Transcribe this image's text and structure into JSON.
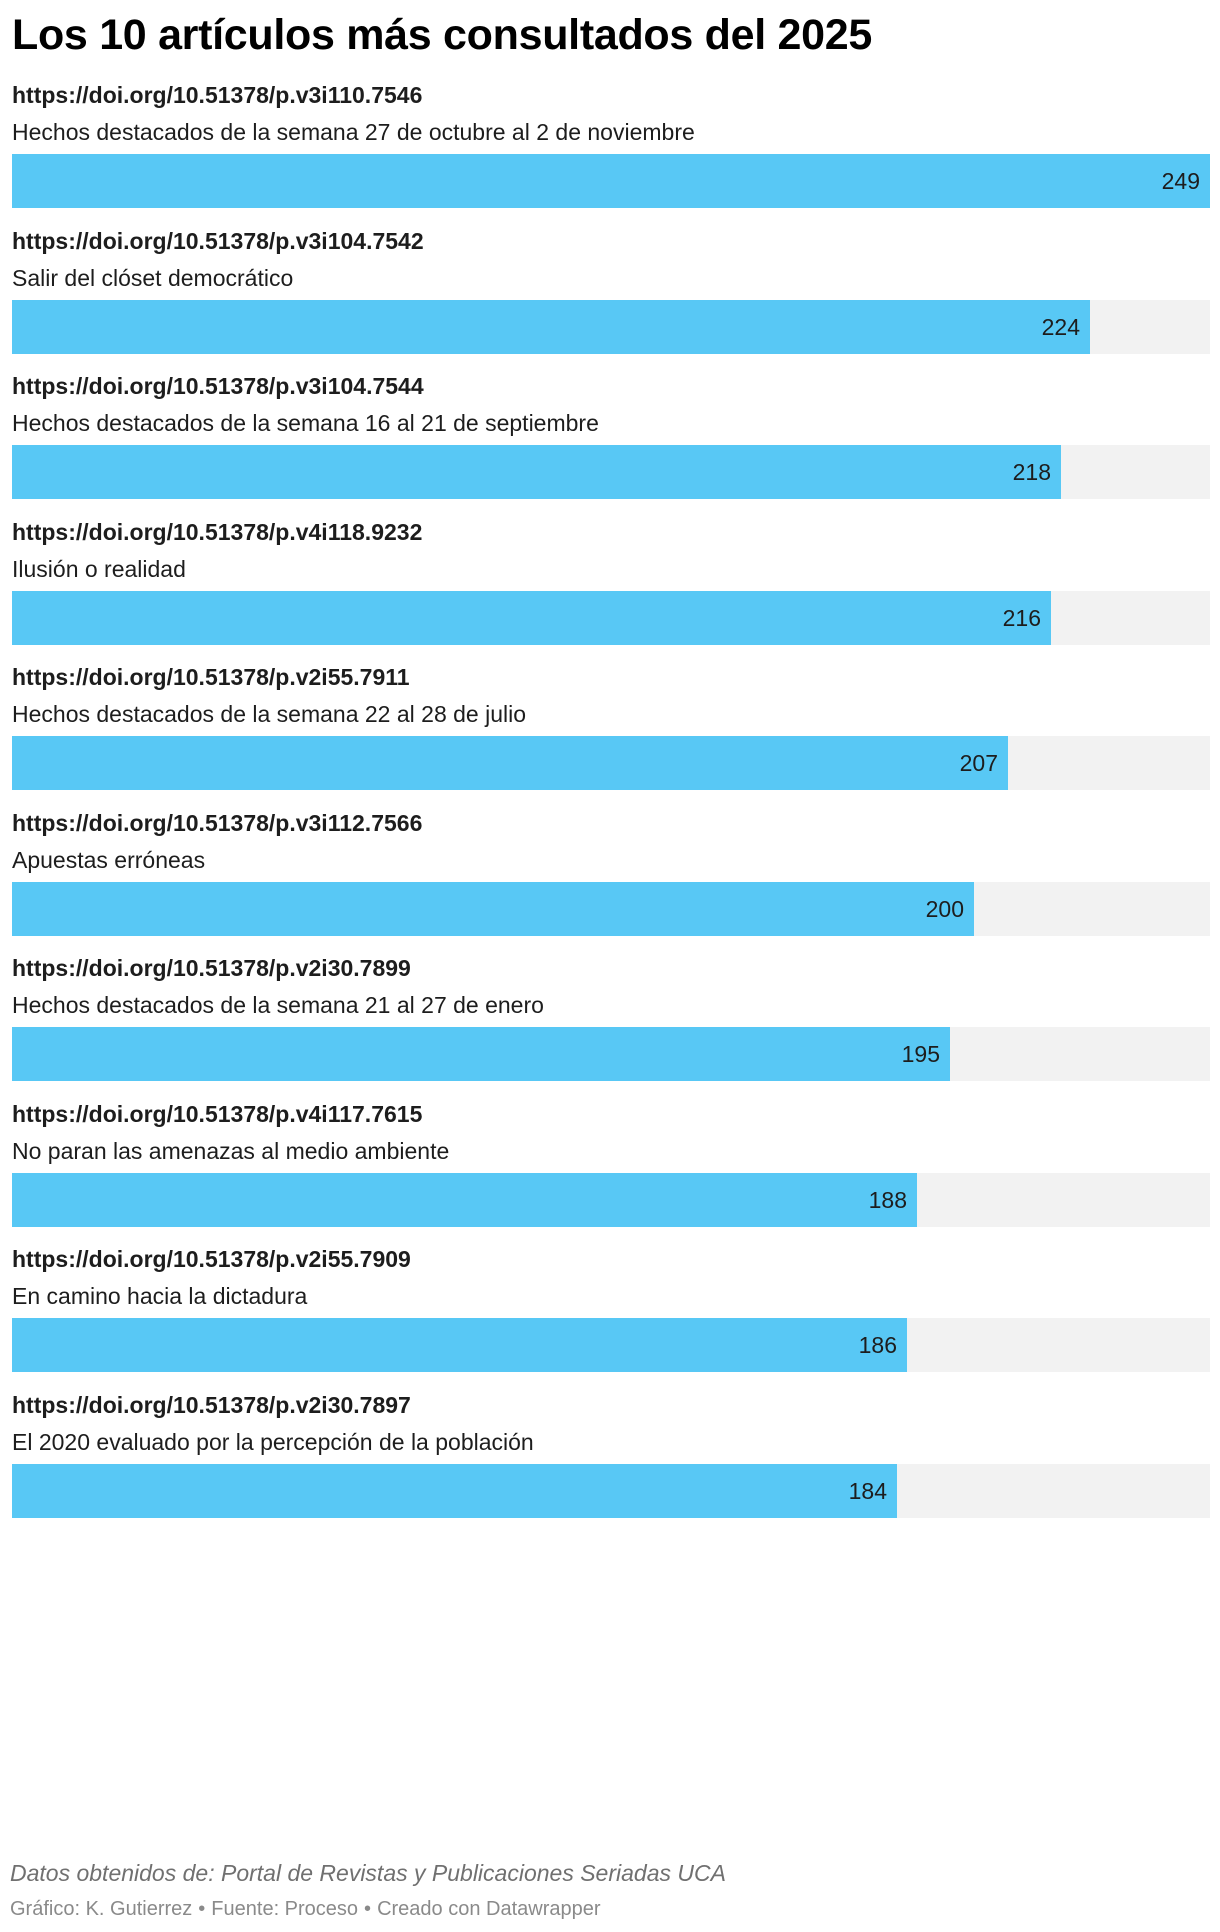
{
  "chart_data": {
    "type": "bar",
    "title": "Los 10 artículos más consultados del 2025",
    "orientation": "horizontal",
    "xlim": [
      0,
      249
    ],
    "bar_color": "#58c8f5",
    "track_color": "#f2f2f2",
    "rows": [
      {
        "doi": "https://doi.org/10.51378/p.v3i110.7546",
        "label": "Hechos destacados de la semana 27 de octubre al 2 de noviembre",
        "value": 249
      },
      {
        "doi": "https://doi.org/10.51378/p.v3i104.7542",
        "label": "Salir del clóset democrático",
        "value": 224
      },
      {
        "doi": "https://doi.org/10.51378/p.v3i104.7544",
        "label": "Hechos destacados de la semana 16 al 21 de septiembre",
        "value": 218
      },
      {
        "doi": "https://doi.org/10.51378/p.v4i118.9232",
        "label": "Ilusión o realidad",
        "value": 216
      },
      {
        "doi": "https://doi.org/10.51378/p.v2i55.7911",
        "label": "Hechos destacados de la semana 22 al 28 de julio",
        "value": 207
      },
      {
        "doi": "https://doi.org/10.51378/p.v3i112.7566",
        "label": "Apuestas erróneas",
        "value": 200
      },
      {
        "doi": "https://doi.org/10.51378/p.v2i30.7899",
        "label": "Hechos destacados de la semana 21 al 27 de enero",
        "value": 195
      },
      {
        "doi": "https://doi.org/10.51378/p.v4i117.7615",
        "label": "No paran las amenazas al medio ambiente",
        "value": 188
      },
      {
        "doi": "https://doi.org/10.51378/p.v2i55.7909",
        "label": "En camino hacia la dictadura",
        "value": 186
      },
      {
        "doi": "https://doi.org/10.51378/p.v2i30.7897",
        "label": "El 2020 evaluado por la percepción de la población",
        "value": 184
      }
    ]
  },
  "notes": "Datos obtenidos de: Portal de Revistas y Publicaciones Seriadas UCA",
  "byline": {
    "author": "Gráfico: K. Gutierrez",
    "separator": "•",
    "source": "Fuente: Proceso",
    "credit": "Creado con Datawrapper"
  }
}
